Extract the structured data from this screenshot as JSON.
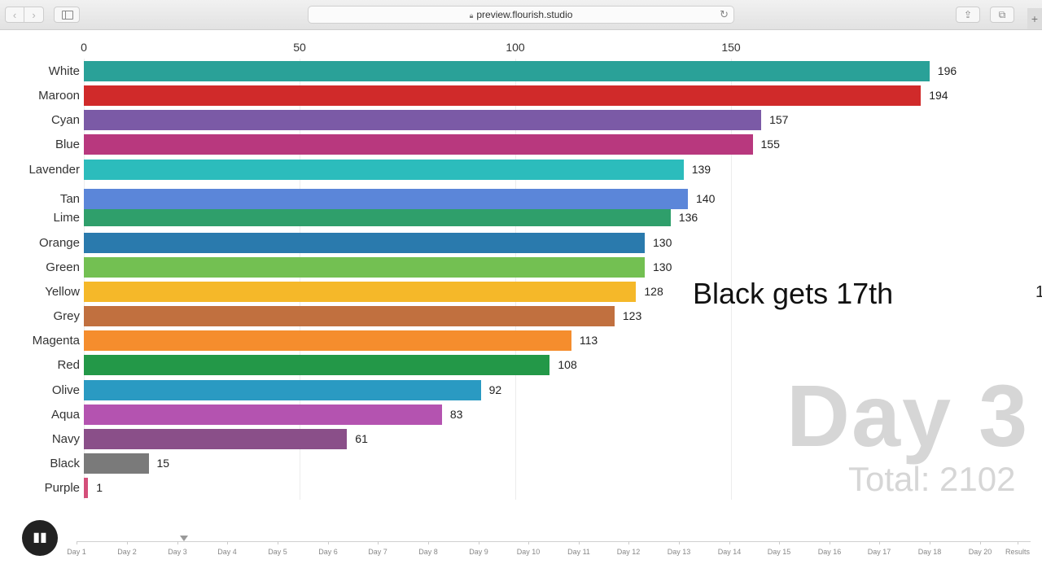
{
  "browser": {
    "url": "preview.flourish.studio",
    "back_icon": "chevron-left-icon",
    "forward_icon": "chevron-right-icon"
  },
  "chart_data": {
    "type": "bar",
    "categories": [
      "White",
      "Maroon",
      "Cyan",
      "Blue",
      "Lavender",
      "Tan",
      "Lime",
      "Orange",
      "Green",
      "Yellow",
      "Grey",
      "Magenta",
      "Red",
      "Olive",
      "Aqua",
      "Navy",
      "Black",
      "Purple"
    ],
    "values": [
      196,
      194,
      157,
      155,
      139,
      140,
      136,
      130,
      130,
      128,
      123,
      113,
      108,
      92,
      83,
      61,
      15,
      1
    ],
    "colors": [
      "#2aa198",
      "#d02a2a",
      "#7b5aa6",
      "#b8387e",
      "#2cbcbc",
      "#5b86d9",
      "#2f9f6b",
      "#2a7aad",
      "#73c052",
      "#f5b829",
      "#c1703f",
      "#f58d2d",
      "#239848",
      "#2a9ac2",
      "#b453b0",
      "#8a4f89",
      "#7a7a7a",
      "#d44f7a"
    ],
    "xlim": [
      0,
      196
    ],
    "xticks": [
      0,
      50,
      100,
      150
    ],
    "grid": true
  },
  "overlay": {
    "caption": "Black gets 17th",
    "edge_mark": "1",
    "day": "Day 3",
    "total": "Total: 2102"
  },
  "timeline": {
    "play_icon": "pause-icon",
    "play_glyph": "▮▮",
    "labels": [
      "Day 1",
      "Day 2",
      "Day 3",
      "Day 4",
      "Day 5",
      "Day 6",
      "Day 7",
      "Day 8",
      "Day 9",
      "Day 10",
      "Day 11",
      "Day 12",
      "Day 13",
      "Day 14",
      "Day 15",
      "Day 16",
      "Day 17",
      "Day 18",
      "Day 20",
      "Results"
    ],
    "current_index": 2
  }
}
